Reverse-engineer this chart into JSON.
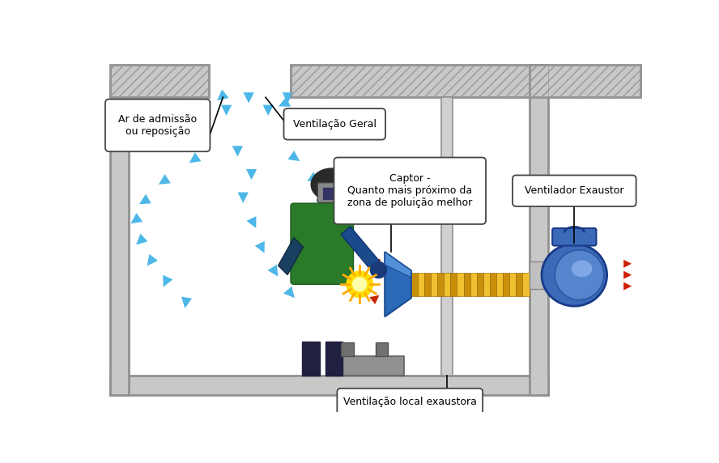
{
  "bg_color": "#ffffff",
  "blue_arrow_color": "#4db8e8",
  "red_arrow_color": "#cc2200",
  "wall_color": "#c8c8c8",
  "wall_edge": "#909090",
  "hatch_color": "#aaaaaa",
  "room_bg": "#ffffff",
  "label_ar_admissao": "Ar de admissão\nou reposição",
  "label_ventilacao_geral": "Ventilação Geral",
  "label_captor": "Captor -\nQuanto mais próximo da\nzona de poluição melhor",
  "label_ventilador": "Ventilador Exaustor",
  "label_ventilacao_local": "Ventilação local exaustora",
  "text_fontsize": 9,
  "above_arrows": [
    [
      0.245,
      0.895,
      0.0,
      -0.07
    ],
    [
      0.285,
      0.93,
      0.0,
      -0.07
    ],
    [
      0.32,
      0.895,
      0.0,
      -0.07
    ],
    [
      0.355,
      0.93,
      0.0,
      -0.07
    ],
    [
      0.39,
      0.895,
      -0.055,
      -0.04
    ],
    [
      0.265,
      0.92,
      -0.04,
      -0.05
    ]
  ],
  "inside_arrows": [
    [
      0.265,
      0.775,
      0.0,
      -0.065
    ],
    [
      0.29,
      0.71,
      0.0,
      -0.065
    ],
    [
      0.275,
      0.645,
      0.0,
      -0.065
    ],
    [
      0.28,
      0.575,
      0.02,
      -0.065
    ],
    [
      0.295,
      0.505,
      0.02,
      -0.065
    ],
    [
      0.315,
      0.435,
      0.025,
      -0.06
    ],
    [
      0.34,
      0.37,
      0.03,
      -0.055
    ],
    [
      0.225,
      0.75,
      -0.05,
      -0.055
    ],
    [
      0.175,
      0.69,
      -0.055,
      -0.055
    ],
    [
      0.14,
      0.63,
      -0.055,
      -0.05
    ],
    [
      0.115,
      0.575,
      -0.045,
      -0.05
    ],
    [
      0.115,
      0.515,
      -0.035,
      -0.05
    ],
    [
      0.125,
      0.455,
      -0.025,
      -0.05
    ],
    [
      0.145,
      0.395,
      -0.015,
      -0.05
    ],
    [
      0.175,
      0.335,
      -0.005,
      -0.05
    ],
    [
      0.33,
      0.755,
      0.05,
      -0.055
    ],
    [
      0.365,
      0.695,
      0.05,
      -0.055
    ],
    [
      0.385,
      0.635,
      0.045,
      -0.052
    ],
    [
      0.39,
      0.575,
      0.04,
      -0.05
    ],
    [
      0.37,
      0.515,
      0.035,
      -0.05
    ],
    [
      0.355,
      0.455,
      0.03,
      -0.05
    ]
  ]
}
